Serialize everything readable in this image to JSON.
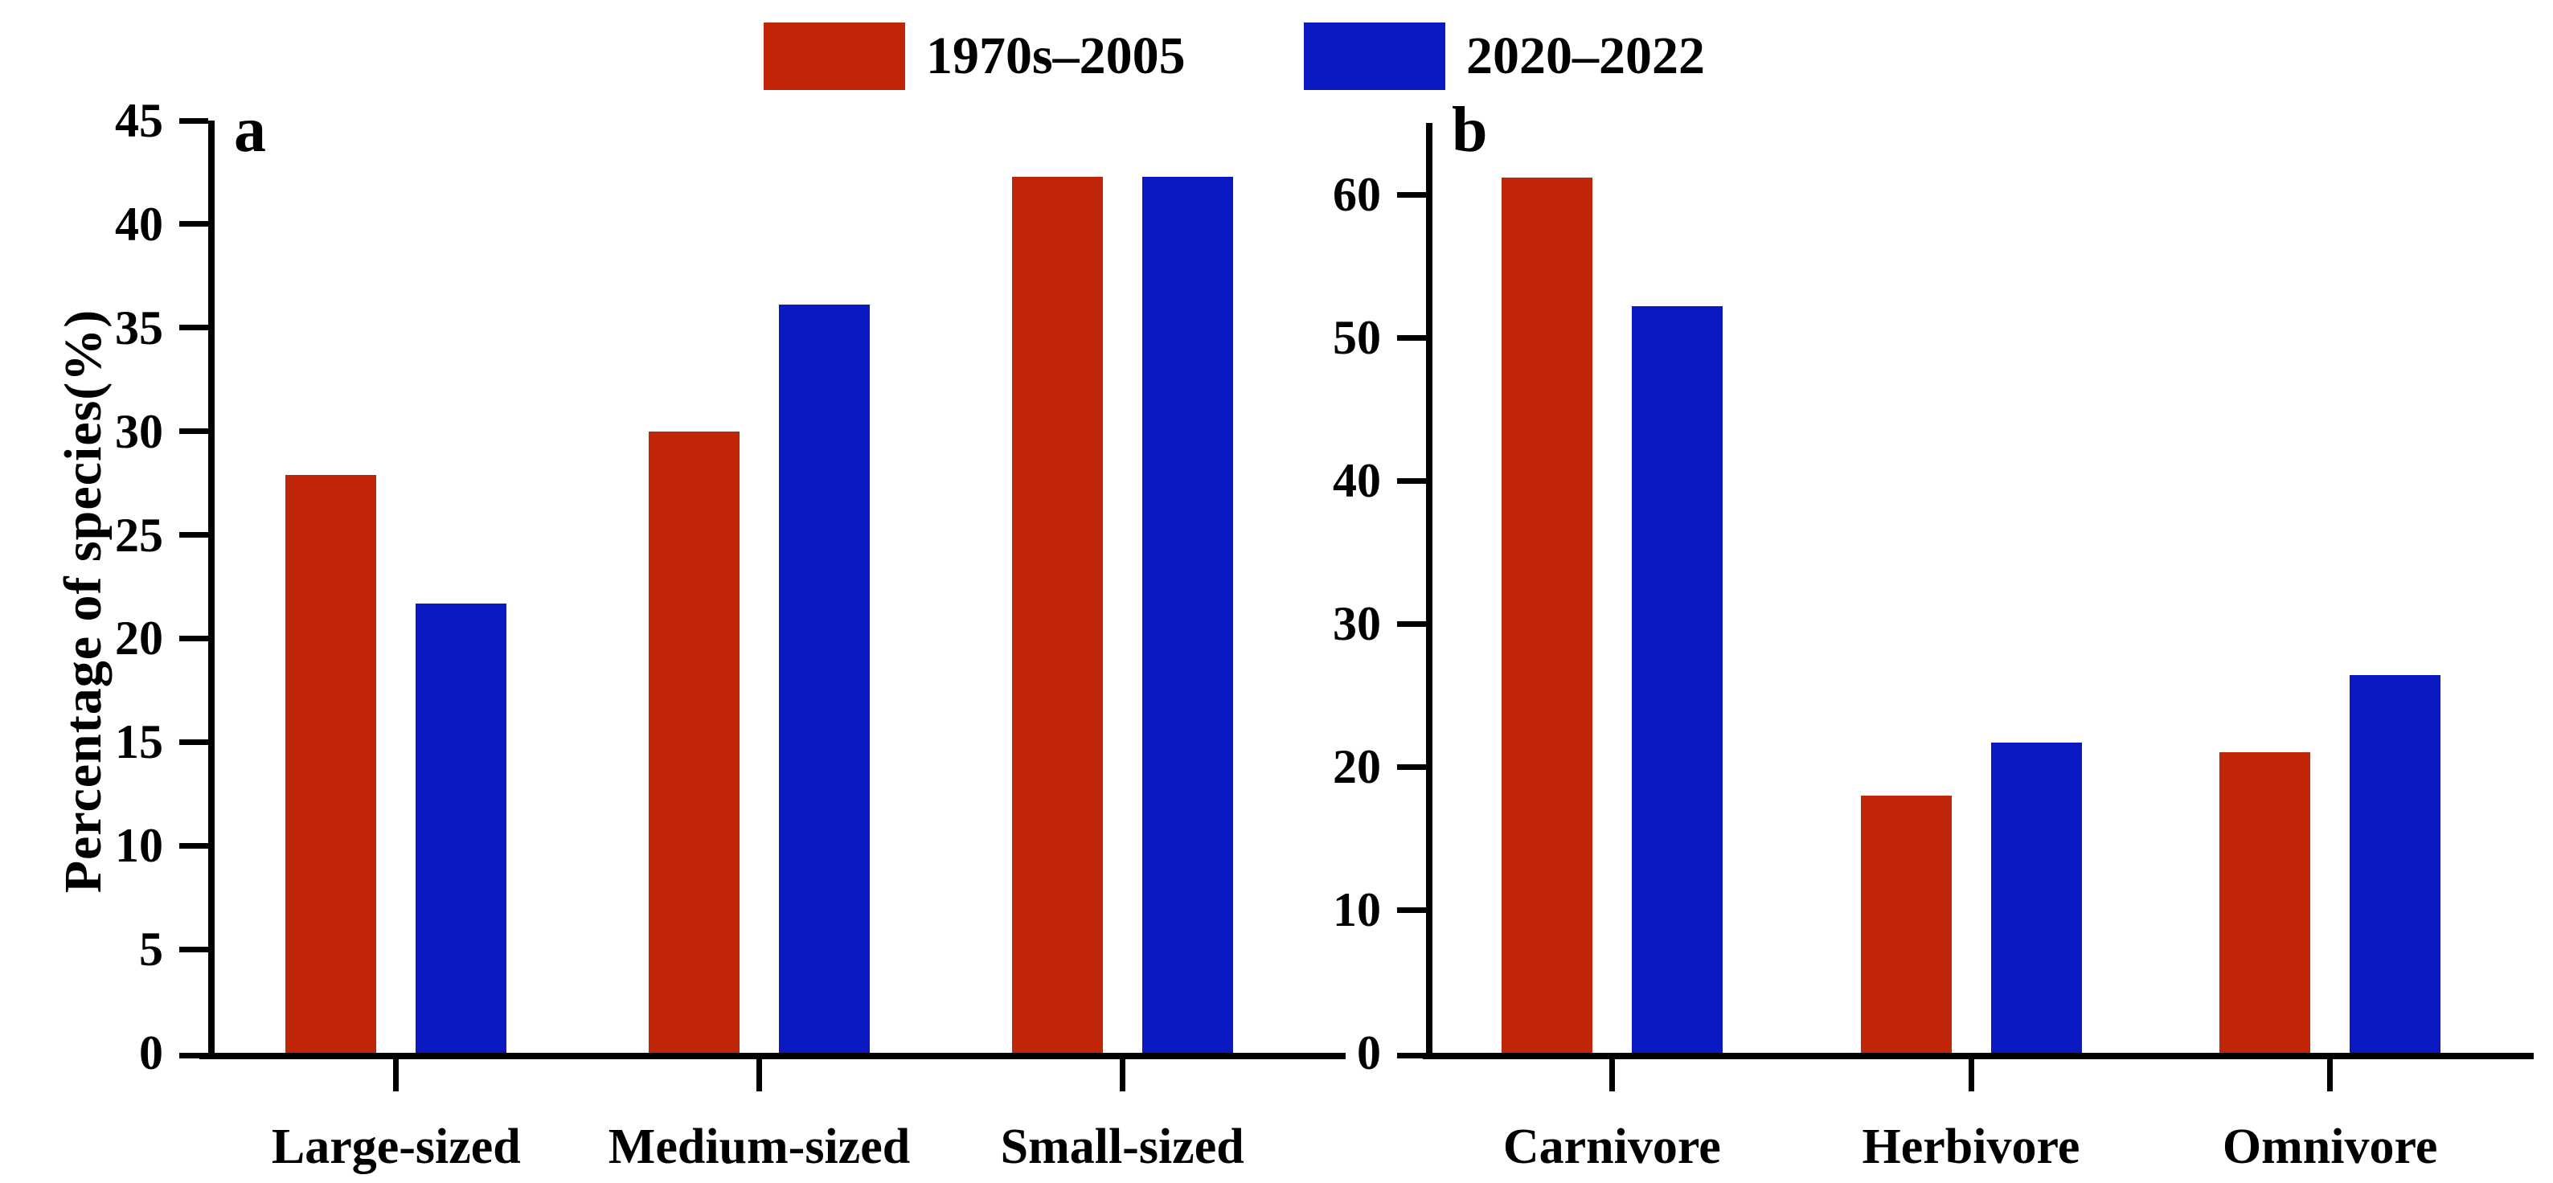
{
  "legend": {
    "items": [
      {
        "label": "1970s–2005",
        "color": "#c02507"
      },
      {
        "label": "2020–2022",
        "color": "#0a19c1"
      }
    ]
  },
  "chart_data": [
    {
      "type": "bar",
      "panel_label": "a",
      "title": "",
      "ylabel": "Percentage of species(%)",
      "xlabel": "",
      "categories": [
        "Large-sized",
        "Medium-sized",
        "Small-sized"
      ],
      "series": [
        {
          "name": "1970s–2005",
          "color": "#c02507",
          "values": [
            27.9,
            30.0,
            42.3
          ]
        },
        {
          "name": "2020–2022",
          "color": "#0a19c1",
          "values": [
            21.7,
            36.1,
            42.3
          ]
        }
      ],
      "ylim": [
        0,
        45
      ],
      "yticks": [
        0,
        5,
        10,
        15,
        20,
        25,
        30,
        35,
        40,
        45
      ],
      "axis_max": 45,
      "grid": false,
      "legend_position": "top-center"
    },
    {
      "type": "bar",
      "panel_label": "b",
      "title": "",
      "ylabel": "",
      "xlabel": "",
      "categories": [
        "Carnivore",
        "Herbivore",
        "Omnivore"
      ],
      "series": [
        {
          "name": "1970s–2005",
          "color": "#c02507",
          "values": [
            61.2,
            18.0,
            21.0
          ]
        },
        {
          "name": "2020–2022",
          "color": "#0a19c1",
          "values": [
            52.2,
            21.7,
            26.4
          ]
        }
      ],
      "ylim": [
        0,
        65
      ],
      "yticks": [
        0,
        10,
        20,
        30,
        40,
        50,
        60
      ],
      "axis_max": 65,
      "grid": false,
      "legend_position": "top-center"
    }
  ]
}
